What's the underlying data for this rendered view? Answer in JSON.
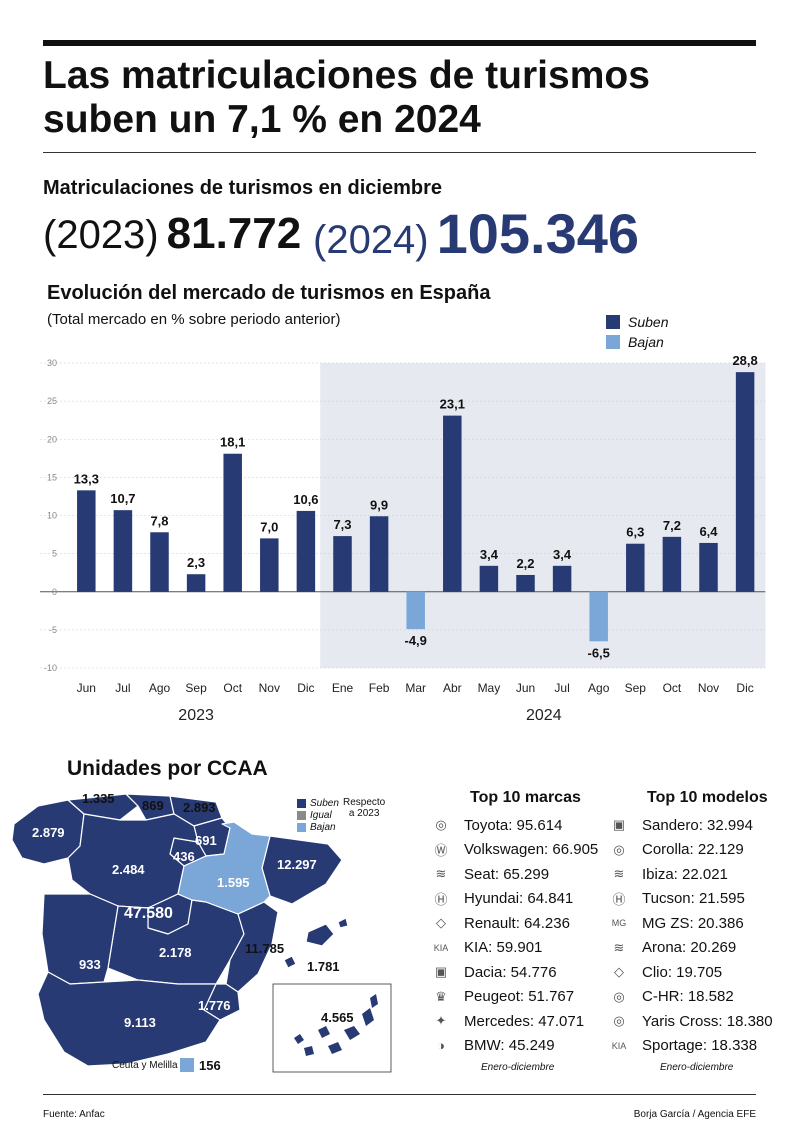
{
  "title_line1": "Las matriculaciones de turismos",
  "title_line2": "suben un 7,1 % en 2024",
  "dec_subtitle": "Matriculaciones de turismos en diciembre",
  "kpi": {
    "y1_label": "(2023)",
    "y1_value": "81.772",
    "y2_label": "(2024)",
    "y2_value": "105.346"
  },
  "chart_title": "Evolución del mercado de turismos en España",
  "chart_subtitle": "(Total mercado en % sobre periodo anterior)",
  "legend": {
    "up": "Suben",
    "down": "Bajan"
  },
  "colors": {
    "up": "#273a73",
    "down": "#7ba7d8",
    "shade": "#e6eaf0",
    "ccaa_up": "#273a73",
    "ccaa_down": "#7ba7d8",
    "ccaa_equal": "#8a8a8a"
  },
  "chart_data": {
    "type": "bar",
    "categories": [
      "Jun",
      "Jul",
      "Ago",
      "Sep",
      "Oct",
      "Nov",
      "Dic",
      "Ene",
      "Feb",
      "Mar",
      "Abr",
      "May",
      "Jun",
      "Jul",
      "Ago",
      "Sep",
      "Oct",
      "Nov",
      "Dic"
    ],
    "values": [
      13.3,
      10.7,
      7.8,
      2.3,
      18.1,
      7.0,
      10.6,
      7.3,
      9.9,
      -4.9,
      23.1,
      3.4,
      2.2,
      3.4,
      -6.5,
      6.3,
      7.2,
      6.4,
      28.8
    ],
    "value_labels": [
      "13,3",
      "10,7",
      "7,8",
      "2,3",
      "18,1",
      "7,0",
      "10,6",
      "7,3",
      "9,9",
      "-4,9",
      "23,1",
      "3,4",
      "2,2",
      "3,4",
      "-6,5",
      "6,3",
      "7,2",
      "6,4",
      "28,8"
    ],
    "year_groups": [
      {
        "label": "2023",
        "months": 7
      },
      {
        "label": "2024",
        "months": 12
      }
    ],
    "yticks": [
      30,
      25,
      20,
      15,
      10,
      5,
      0,
      -5,
      -10
    ],
    "ylim": [
      -10,
      30
    ],
    "grid": true,
    "legend_position": "top-right"
  },
  "ccaa": {
    "title": "Unidades por CCAA",
    "legend": {
      "up": "Suben",
      "equal": "Igual",
      "down": "Bajan",
      "note_line1": "Respecto",
      "note_line2": "a 2023"
    },
    "values": {
      "galicia": "2.879",
      "asturias": "1.335",
      "cantabria": "869",
      "pais_vasco": "2.893",
      "navarra": "691",
      "rioja": "436",
      "aragon": "1.595",
      "cataluna": "12.297",
      "castilla_leon": "2.484",
      "madrid": "47.580",
      "castilla_la_mancha": "2.178",
      "extremadura": "933",
      "valencia": "11.785",
      "baleares": "1.781",
      "murcia": "1.776",
      "andalucia": "9.113",
      "canarias": "4.565"
    },
    "ceuta_label": "Ceuta y Melilla",
    "ceuta_value": "156"
  },
  "brands": {
    "title": "Top 10 marcas",
    "items": [
      {
        "name": "Toyota: 95.614",
        "icon": "toyota-logo-icon"
      },
      {
        "name": "Volkswagen: 66.905",
        "icon": "volkswagen-logo-icon"
      },
      {
        "name": "Seat: 65.299",
        "icon": "seat-logo-icon"
      },
      {
        "name": "Hyundai: 64.841",
        "icon": "hyundai-logo-icon"
      },
      {
        "name": "Renault: 64.236",
        "icon": "renault-logo-icon"
      },
      {
        "name": "KIA: 59.901",
        "icon": "kia-logo-icon"
      },
      {
        "name": "Dacia: 54.776",
        "icon": "dacia-logo-icon"
      },
      {
        "name": "Peugeot: 51.767",
        "icon": "peugeot-logo-icon"
      },
      {
        "name": "Mercedes: 47.071",
        "icon": "mercedes-logo-icon"
      },
      {
        "name": "BMW: 45.249",
        "icon": "bmw-logo-icon"
      }
    ],
    "footnote": "Enero-diciembre"
  },
  "models": {
    "title": "Top 10 modelos",
    "items": [
      {
        "name": "Sandero: 32.994",
        "icon": "dacia-logo-icon"
      },
      {
        "name": "Corolla: 22.129",
        "icon": "toyota-logo-icon"
      },
      {
        "name": "Ibiza: 22.021",
        "icon": "seat-logo-icon"
      },
      {
        "name": "Tucson: 21.595",
        "icon": "hyundai-logo-icon"
      },
      {
        "name": "MG ZS: 20.386",
        "icon": "mg-logo-icon"
      },
      {
        "name": "Arona: 20.269",
        "icon": "seat-logo-icon"
      },
      {
        "name": "Clio: 19.705",
        "icon": "renault-logo-icon"
      },
      {
        "name": "C-HR: 18.582",
        "icon": "toyota-logo-icon"
      },
      {
        "name": "Yaris Cross: 18.380",
        "icon": "toyota-logo-icon"
      },
      {
        "name": "Sportage: 18.338",
        "icon": "kia-logo-icon"
      }
    ],
    "footnote": "Enero-diciembre"
  },
  "source": "Fuente: Anfac",
  "credit": "Borja García / Agencia EFE"
}
